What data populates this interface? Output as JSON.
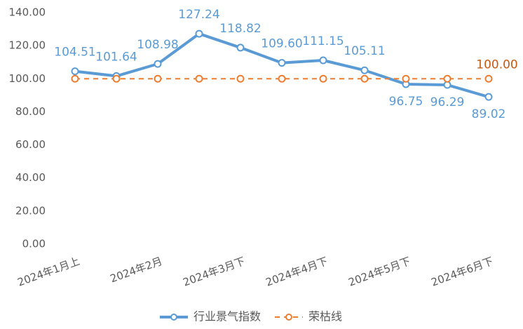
{
  "chart_data": {
    "type": "line",
    "categories": [
      "2024年1月上",
      null,
      "2024年2月",
      null,
      "2024年3月下",
      null,
      "2024年4月下",
      null,
      "2024年5月下",
      null,
      "2024年6月下"
    ],
    "series": [
      {
        "name": "行业景气指数",
        "color": "#5b9bd5",
        "label_color": "#5b9bd5",
        "dashed": false,
        "values": [
          104.51,
          101.64,
          108.98,
          127.24,
          118.82,
          109.6,
          111.15,
          105.11,
          96.75,
          96.29,
          89.02
        ],
        "value_labels": [
          "104.51",
          "101.64",
          "108.98",
          "127.24",
          "118.82",
          "109.60",
          "111.15",
          "105.11",
          "96.75",
          "96.29",
          "89.02"
        ]
      },
      {
        "name": "荣枯线",
        "color": "#ed7d31",
        "label_color": "#c55a11",
        "dashed": true,
        "values": [
          100,
          100,
          100,
          100,
          100,
          100,
          100,
          100,
          100,
          100,
          100
        ],
        "value_labels": [
          null,
          null,
          null,
          null,
          null,
          null,
          null,
          null,
          null,
          null,
          "100.00"
        ]
      }
    ],
    "ylim": [
      0,
      140
    ],
    "yticks": [
      {
        "value": 0,
        "label": "0.00"
      },
      {
        "value": 20,
        "label": "20.00"
      },
      {
        "value": 40,
        "label": "40.00"
      },
      {
        "value": 60,
        "label": "60.00"
      },
      {
        "value": 80,
        "label": "80.00"
      },
      {
        "value": 100,
        "label": "100.00"
      },
      {
        "value": 120,
        "label": "120.00"
      },
      {
        "value": 140,
        "label": "140.00"
      }
    ],
    "legend": "bottom"
  }
}
